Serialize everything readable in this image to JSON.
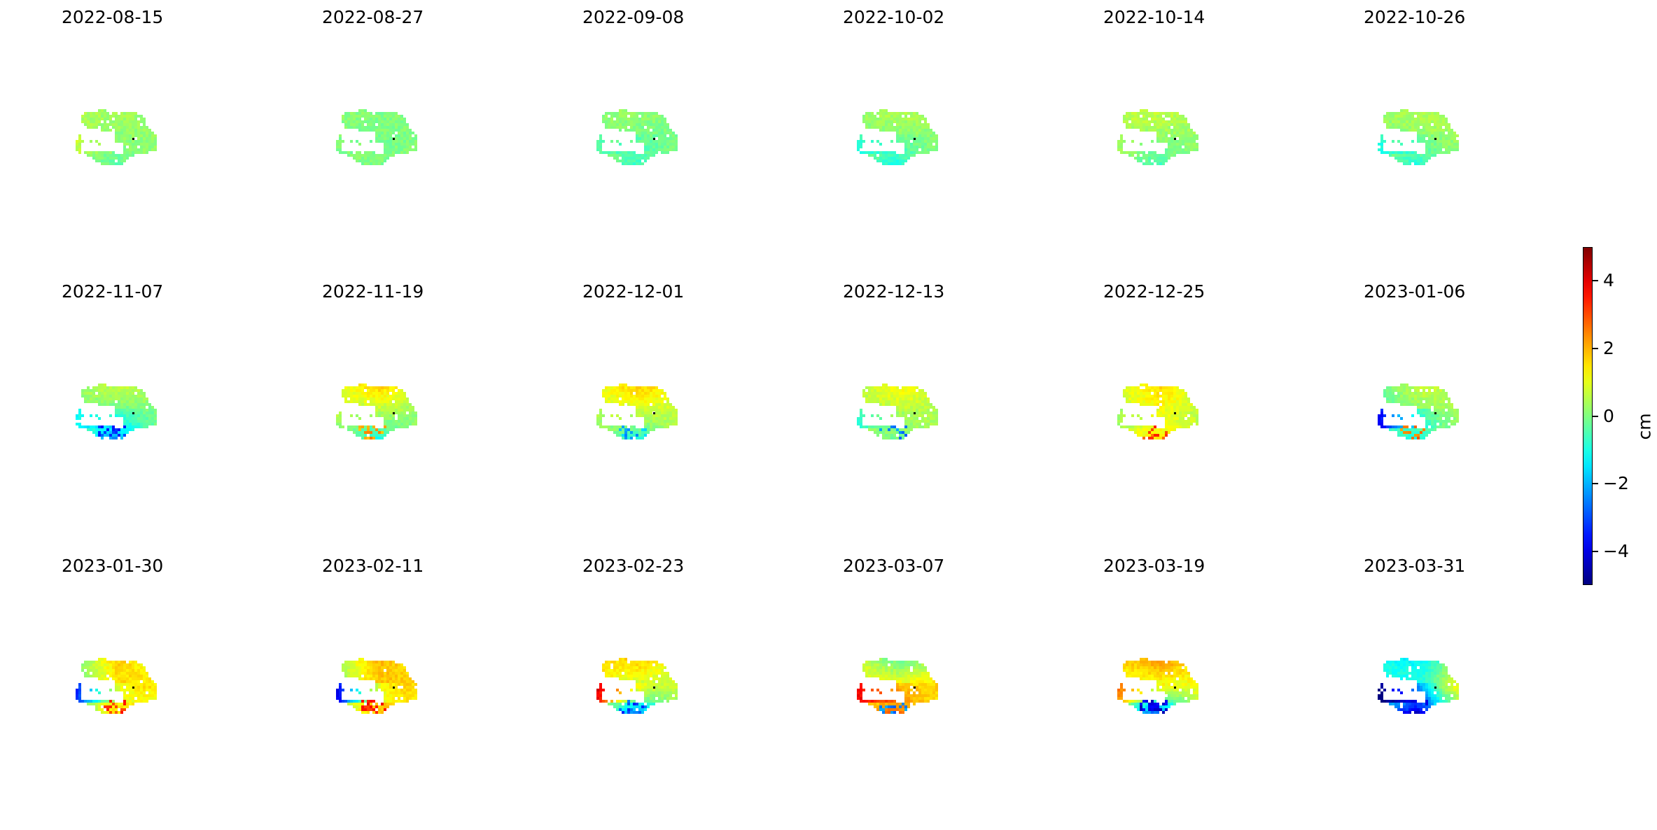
{
  "chart_data": {
    "type": "heatmap",
    "description_unit": "cm",
    "panels": [
      {
        "date": "2022-08-15",
        "mean": 0.4,
        "north": 0.3,
        "east": 0.2,
        "south": -0.3,
        "west": 0.8,
        "anomalies": []
      },
      {
        "date": "2022-08-27",
        "mean": 0.2,
        "north": 0.0,
        "east": 0.0,
        "south": 0.0,
        "west": 0.0,
        "anomalies": []
      },
      {
        "date": "2022-09-08",
        "mean": 0.3,
        "north": 0.2,
        "east": -0.1,
        "south": -0.6,
        "west": -0.3,
        "anomalies": []
      },
      {
        "date": "2022-10-02",
        "mean": 0.4,
        "north": 0.6,
        "east": 0.1,
        "south": -0.9,
        "west": -0.8,
        "anomalies": []
      },
      {
        "date": "2022-10-14",
        "mean": 0.5,
        "north": 0.7,
        "east": 0.2,
        "south": -0.6,
        "west": 0.5,
        "anomalies": []
      },
      {
        "date": "2022-10-26",
        "mean": 0.4,
        "north": 0.6,
        "east": 0.3,
        "south": -0.8,
        "west": -0.9,
        "anomalies": []
      },
      {
        "date": "2022-11-07",
        "mean": 0.4,
        "north": 0.8,
        "east": 0.0,
        "south": -2.2,
        "west": -1.0,
        "anomalies": [
          -3.2
        ]
      },
      {
        "date": "2022-11-19",
        "mean": 0.6,
        "north": 1.9,
        "east": 0.0,
        "south": -1.0,
        "west": 0.5,
        "anomalies": [
          2.2
        ]
      },
      {
        "date": "2022-12-01",
        "mean": 0.8,
        "north": 1.9,
        "east": 0.5,
        "south": -0.8,
        "west": 0.5,
        "anomalies": [
          -2.0
        ]
      },
      {
        "date": "2022-12-13",
        "mean": 0.6,
        "north": 1.4,
        "east": 0.3,
        "south": 0.0,
        "west": -0.8,
        "anomalies": [
          -2.5
        ]
      },
      {
        "date": "2022-12-25",
        "mean": 0.7,
        "north": 1.8,
        "east": 0.3,
        "south": 1.5,
        "west": 0.0,
        "anomalies": [
          3.0
        ]
      },
      {
        "date": "2023-01-06",
        "mean": 0.4,
        "north": 0.9,
        "east": 0.2,
        "south": -0.8,
        "west": -4.0,
        "anomalies": [
          2.5
        ]
      },
      {
        "date": "2023-01-30",
        "mean": 0.2,
        "north": 1.9,
        "east": 1.2,
        "south": 1.5,
        "west": -4.0,
        "anomalies": [
          3.2
        ]
      },
      {
        "date": "2023-02-11",
        "mean": 0.9,
        "north": 2.2,
        "east": 1.4,
        "south": 2.0,
        "west": -4.5,
        "anomalies": [
          3.5
        ]
      },
      {
        "date": "2023-02-23",
        "mean": 0.6,
        "north": 1.6,
        "east": 0.8,
        "south": -2.5,
        "west": 4.5,
        "anomalies": [
          -3.0
        ]
      },
      {
        "date": "2023-03-07",
        "mean": 0.5,
        "north": -0.6,
        "east": 2.0,
        "south": 2.5,
        "west": 3.8,
        "anomalies": [
          -2.5
        ]
      },
      {
        "date": "2023-03-19",
        "mean": 0.7,
        "north": 2.3,
        "east": 1.2,
        "south": -3.0,
        "west": 3.0,
        "anomalies": [
          -4.0
        ]
      },
      {
        "date": "2023-03-31",
        "mean": 0.3,
        "north": -1.5,
        "east": 2.0,
        "south": -4.5,
        "west": -4.8,
        "anomalies": [
          -3.5
        ]
      }
    ],
    "colorbar": {
      "colormap": "jet",
      "vmin": -5,
      "vmax": 5,
      "ticks": [
        4,
        2,
        0,
        -2,
        -4
      ],
      "tick_labels": [
        "4",
        "2",
        "0",
        "−2",
        "−4"
      ],
      "label": "cm"
    },
    "reference_point_color": "#000000"
  }
}
